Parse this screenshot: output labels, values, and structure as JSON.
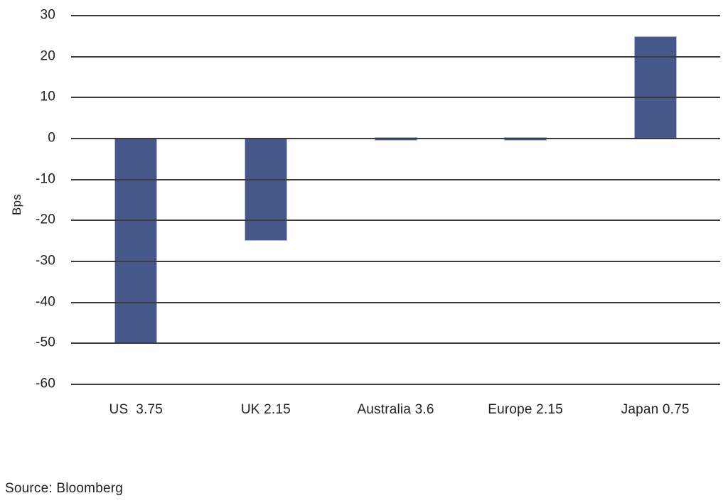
{
  "chart_data": {
    "type": "bar",
    "categories": [
      "US  3.75",
      "UK 2.15",
      "Australia 3.6",
      "Europe 2.15",
      "Japan 0.75"
    ],
    "values": [
      -50,
      -25,
      0,
      0,
      25
    ],
    "title": "",
    "xlabel": "",
    "ylabel": "Bps",
    "ylim": [
      -60,
      30
    ],
    "yticks": [
      30,
      20,
      10,
      0,
      -10,
      -20,
      -30,
      -40,
      -50,
      -60
    ],
    "grid": true,
    "legend": "none",
    "bar_color": "#46588a",
    "bar_border_color": "#b3bcd6",
    "gridline_color": "#3b3b3b",
    "text_color": "#1f1f1f",
    "background_color": "#ffffff"
  },
  "source": "Source: Bloomberg"
}
